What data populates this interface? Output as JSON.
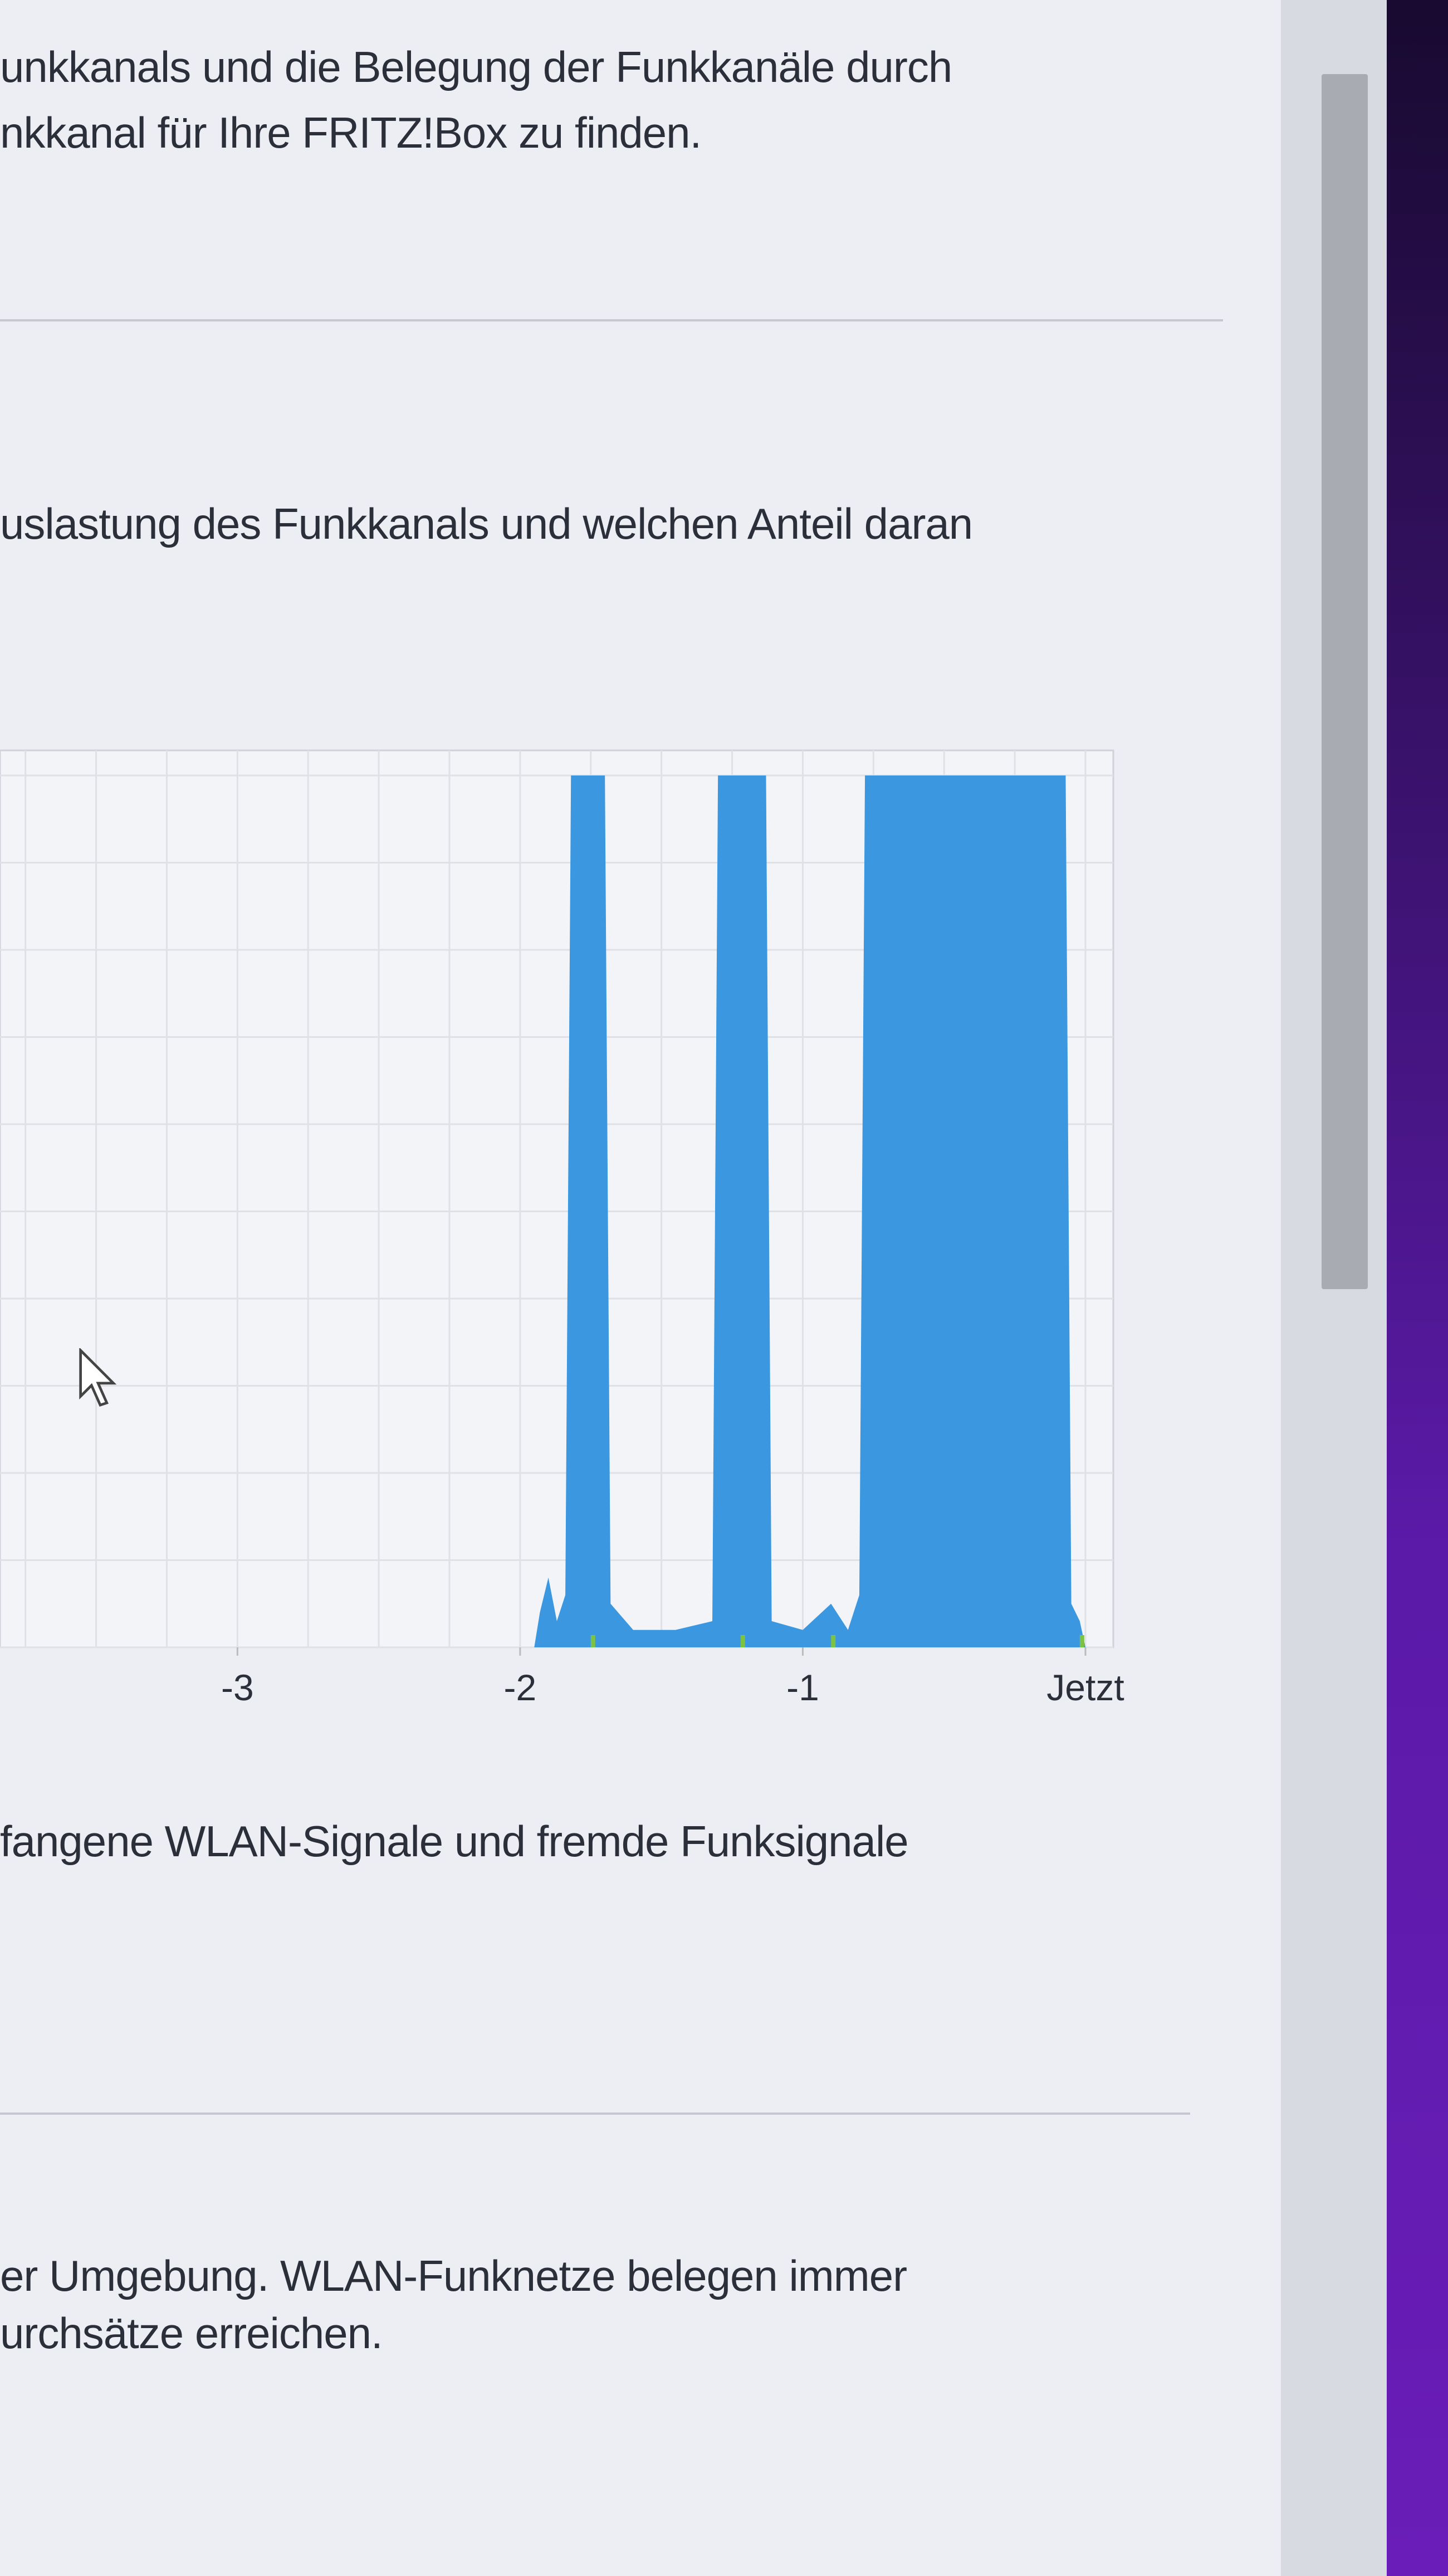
{
  "intro": {
    "line1": "unkkanals und die Belegung der Funkkanäle durch",
    "line2": "nkkanal für Ihre FRITZ!Box zu finden."
  },
  "section2": {
    "text": "uslastung des Funkkanals und welchen Anteil daran"
  },
  "chart_data": {
    "type": "area",
    "xlabel": "",
    "ylabel": "",
    "xlim": [
      -3.84,
      0
    ],
    "ylim": [
      0,
      100
    ],
    "grid": true,
    "tick_labels": [
      "-3",
      "-2",
      "-1",
      "Jetzt"
    ],
    "tick_values": [
      -3,
      -2,
      -1,
      0
    ],
    "colors": {
      "main": "#3a97e0",
      "minor": "#7cc243"
    },
    "series": [
      {
        "color": "#3a97e0",
        "points": [
          [
            -1.95,
            0
          ],
          [
            -1.93,
            4
          ],
          [
            -1.9,
            8
          ],
          [
            -1.87,
            3
          ],
          [
            -1.84,
            6
          ],
          [
            -1.82,
            100
          ],
          [
            -1.7,
            100
          ],
          [
            -1.68,
            5
          ],
          [
            -1.6,
            2
          ],
          [
            -1.45,
            2
          ],
          [
            -1.32,
            3
          ],
          [
            -1.3,
            100
          ],
          [
            -1.13,
            100
          ],
          [
            -1.11,
            3
          ],
          [
            -1.0,
            2
          ],
          [
            -0.9,
            5
          ],
          [
            -0.84,
            2
          ],
          [
            -0.8,
            6
          ],
          [
            -0.78,
            100
          ],
          [
            -0.07,
            100
          ],
          [
            -0.05,
            5
          ],
          [
            -0.02,
            3
          ],
          [
            0.0,
            0
          ]
        ]
      }
    ]
  },
  "section3": {
    "text": "fangene WLAN-Signale und fremde Funksignale"
  },
  "section4": {
    "line1": "er Umgebung. WLAN-Funknetze belegen immer",
    "line2": "urchsätze erreichen."
  }
}
